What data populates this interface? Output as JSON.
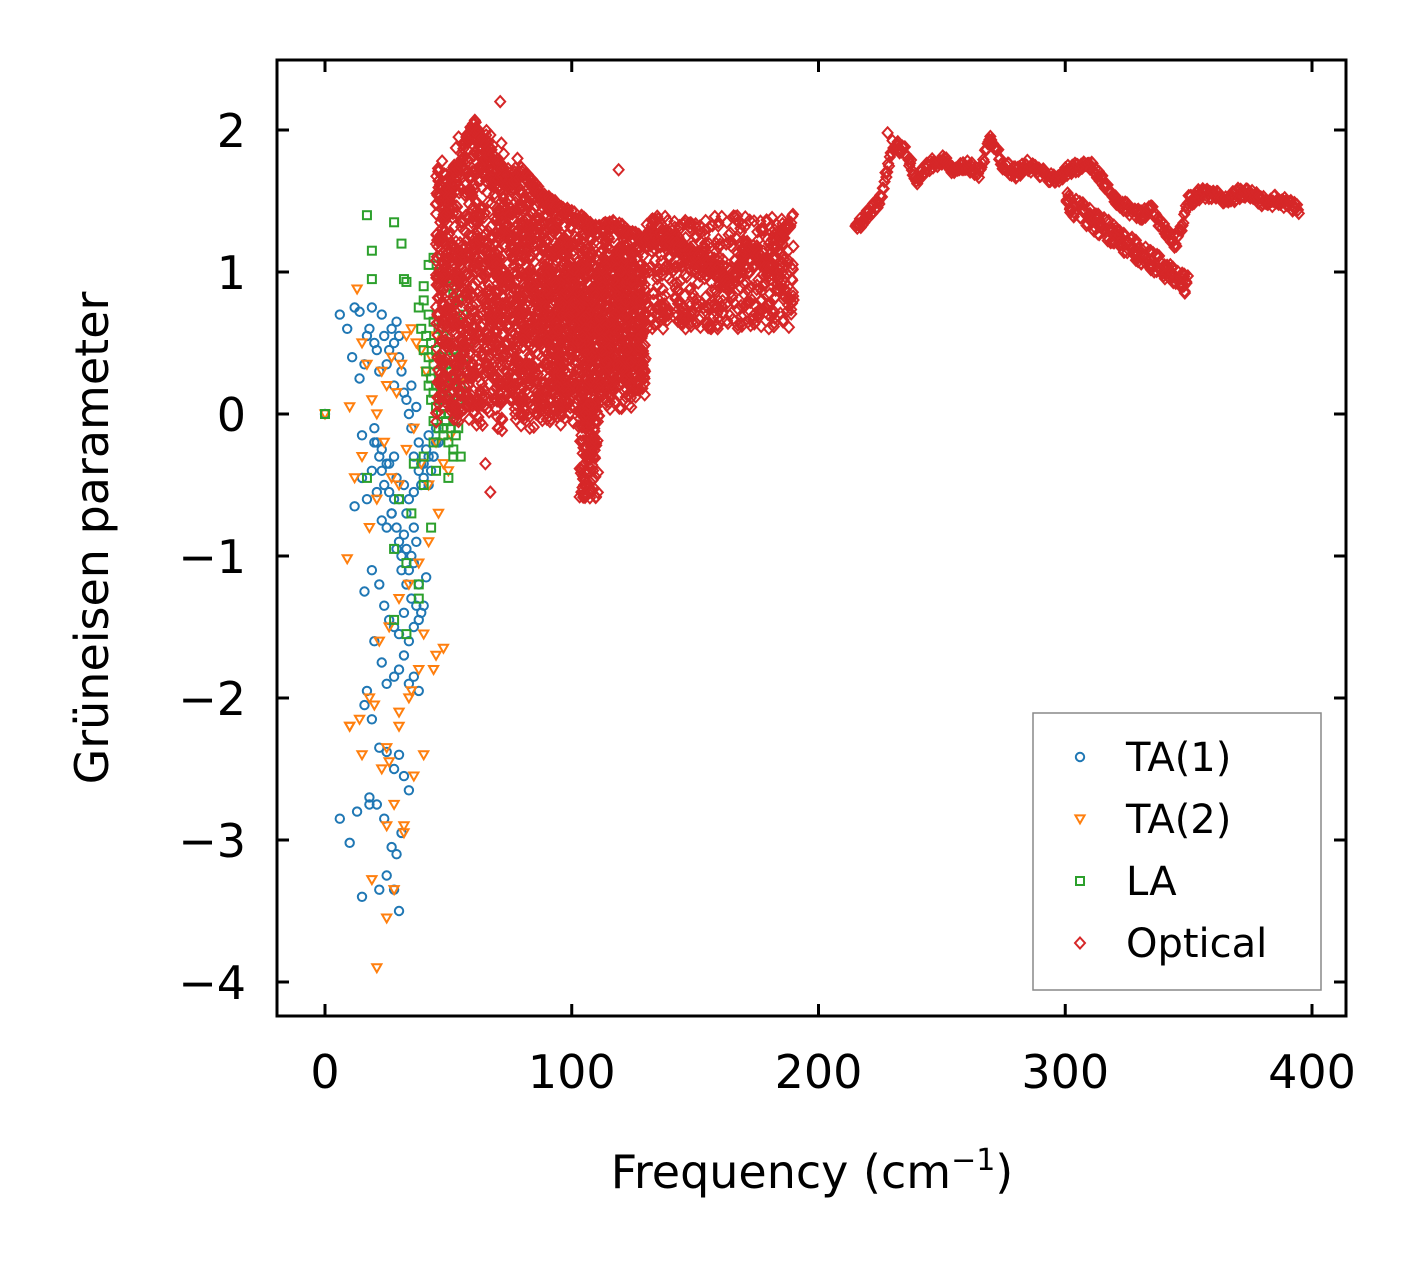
{
  "chart_data": {
    "type": "scatter",
    "xlabel": "Frequency (cm",
    "xlabel_sup": "−1",
    "xlabel_close": ")",
    "ylabel": "Grüneisen parameter",
    "xlim": [
      -20,
      415
    ],
    "ylim": [
      -4.25,
      2.5
    ],
    "xticks": [
      0,
      100,
      200,
      300,
      400
    ],
    "xtick_labels": [
      "0",
      "100",
      "200",
      "300",
      "400"
    ],
    "yticks": [
      2,
      1,
      0,
      -1,
      -2,
      -3,
      -4
    ],
    "ytick_labels": [
      "2",
      "1",
      "0",
      "−1",
      "−2",
      "−3",
      "−4"
    ],
    "grid": false,
    "legend_position": "bottom-right",
    "series": [
      {
        "name": "TA(1)",
        "marker": "circle",
        "color": "#1f77b4",
        "x": [
          0,
          6,
          9,
          11,
          12,
          14,
          14,
          16,
          17,
          18,
          19,
          20,
          21,
          22,
          23,
          24,
          25,
          26,
          27,
          28,
          28,
          29,
          30,
          30,
          31,
          32,
          33,
          34,
          35,
          35,
          36,
          37,
          38,
          39,
          40,
          41,
          42,
          43,
          44,
          45,
          46,
          20,
          21,
          22,
          23,
          24,
          25,
          26,
          27,
          28,
          29,
          30,
          31,
          32,
          33,
          34,
          35,
          36,
          37,
          38,
          12,
          15,
          17,
          19,
          21,
          23,
          25,
          27,
          29,
          31,
          33,
          35,
          37,
          39,
          41,
          16,
          19,
          22,
          24,
          26,
          28,
          30,
          32,
          34,
          36,
          38,
          40,
          17,
          20,
          23,
          25,
          28,
          30,
          32,
          34,
          36,
          38,
          16,
          19,
          22,
          25,
          28,
          30,
          32,
          34,
          15,
          18,
          21,
          24,
          27,
          29,
          31,
          6,
          10,
          13,
          18,
          22,
          25,
          28,
          30,
          15,
          20,
          23,
          26,
          28,
          29,
          32,
          34,
          36,
          38,
          40,
          42,
          44,
          46,
          48,
          50,
          52,
          30,
          33,
          36,
          39,
          42,
          45,
          48
        ],
        "y": [
          0.0,
          0.7,
          0.6,
          0.4,
          0.75,
          0.72,
          0.25,
          0.35,
          0.55,
          0.6,
          0.75,
          0.5,
          0.45,
          0.3,
          0.7,
          0.55,
          0.35,
          0.45,
          0.6,
          0.5,
          0.2,
          0.65,
          0.4,
          0.55,
          0.3,
          0.15,
          0.1,
          0.0,
          0.2,
          -0.1,
          -0.3,
          0.05,
          -0.2,
          -0.35,
          -0.45,
          -0.25,
          -0.15,
          -0.4,
          -0.3,
          -0.1,
          -0.2,
          -0.1,
          -0.2,
          -0.3,
          -0.4,
          -0.5,
          -0.35,
          -0.55,
          -0.7,
          -0.6,
          -0.8,
          -0.9,
          -1.0,
          -0.85,
          -0.95,
          -1.1,
          -1.0,
          -1.05,
          -0.9,
          -1.2,
          -0.65,
          -0.45,
          -0.6,
          -0.4,
          -0.55,
          -0.75,
          -0.8,
          -0.7,
          -0.95,
          -1.1,
          -1.2,
          -1.3,
          -1.35,
          -1.4,
          -1.15,
          -1.25,
          -1.1,
          -1.2,
          -1.35,
          -1.45,
          -1.5,
          -1.55,
          -1.4,
          -1.6,
          -1.5,
          -1.45,
          -1.35,
          -1.95,
          -1.6,
          -1.75,
          -1.9,
          -1.85,
          -1.8,
          -1.7,
          -1.9,
          -1.85,
          -1.95,
          -2.05,
          -2.15,
          -2.35,
          -2.38,
          -2.5,
          -2.4,
          -2.55,
          -2.65,
          -3.4,
          -2.7,
          -2.75,
          -2.85,
          -3.05,
          -3.1,
          -2.95,
          -2.85,
          -3.02,
          -2.8,
          -2.75,
          -3.35,
          -3.25,
          -3.35,
          -3.5,
          -0.15,
          -0.2,
          -0.25,
          -0.35,
          -0.3,
          -0.45,
          -0.5,
          -0.6,
          -0.55,
          -0.4,
          -0.35,
          -0.5,
          -0.3,
          -0.2,
          -0.1,
          0.0,
          0.1,
          -0.6,
          -0.7,
          -0.8,
          -0.5,
          -0.3,
          -0.2,
          -0.1
        ]
      },
      {
        "name": "TA(2)",
        "marker": "triangle-down",
        "color": "#ff7f0e",
        "x": [
          0,
          10,
          13,
          15,
          17,
          19,
          21,
          23,
          25,
          27,
          29,
          31,
          33,
          35,
          37,
          39,
          41,
          43,
          45,
          47,
          49,
          51,
          53,
          55,
          9,
          12,
          15,
          18,
          21,
          24,
          27,
          30,
          33,
          36,
          39,
          42,
          45,
          48,
          51,
          10,
          14,
          18,
          22,
          26,
          30,
          34,
          38,
          42,
          46,
          50,
          10,
          15,
          20,
          25,
          30,
          35,
          40,
          45,
          21,
          25,
          28,
          32,
          36,
          40,
          44,
          48,
          19,
          25,
          28,
          32,
          23,
          26,
          30,
          34,
          38
        ],
        "y": [
          0.0,
          0.05,
          0.88,
          0.5,
          0.35,
          0.1,
          0.0,
          0.3,
          0.2,
          0.4,
          0.15,
          0.35,
          0.55,
          0.6,
          0.5,
          0.45,
          0.3,
          0.4,
          0.55,
          0.35,
          0.2,
          0.45,
          0.3,
          0.25,
          -1.02,
          -0.45,
          -0.3,
          -0.8,
          -0.6,
          -0.2,
          -0.45,
          -0.5,
          -0.25,
          -0.1,
          -0.35,
          -0.5,
          -0.2,
          -0.35,
          -0.15,
          -2.2,
          -2.15,
          -2.0,
          -1.6,
          -1.5,
          -1.3,
          -1.2,
          -1.05,
          -0.9,
          -0.7,
          -0.4,
          -2.2,
          -2.4,
          -2.05,
          -2.35,
          -2.1,
          -1.95,
          -1.55,
          -1.7,
          -3.9,
          -3.55,
          -3.35,
          -2.9,
          -2.55,
          -2.4,
          -1.8,
          -1.65,
          -3.28,
          -2.9,
          -2.75,
          -2.95,
          -2.5,
          -2.45,
          -2.2,
          -2.0,
          -1.8
        ]
      },
      {
        "name": "LA",
        "marker": "square",
        "color": "#2ca02c",
        "x": [
          0,
          17,
          19,
          28,
          31,
          19,
          32,
          33,
          40,
          42,
          44,
          46,
          48,
          50,
          52,
          54,
          56,
          58,
          38,
          40,
          42,
          44,
          46,
          48,
          50,
          52,
          54,
          56,
          39,
          41,
          43,
          45,
          47,
          49,
          51,
          53,
          55,
          57,
          40,
          42,
          44,
          46,
          48,
          50,
          52,
          54,
          41,
          43,
          45,
          47,
          49,
          51,
          53,
          42,
          44,
          46,
          48,
          50,
          52,
          54,
          43,
          45,
          47,
          49,
          51,
          53,
          44,
          46,
          48,
          50,
          52,
          36,
          40,
          44,
          48,
          52,
          55,
          30,
          35,
          40,
          45,
          50,
          28,
          33,
          38,
          43,
          17,
          28,
          33,
          38
        ],
        "y": [
          0.0,
          1.4,
          1.15,
          1.35,
          1.2,
          0.95,
          0.95,
          0.93,
          0.9,
          1.05,
          1.1,
          1.0,
          0.95,
          0.9,
          0.85,
          0.8,
          0.7,
          0.5,
          0.75,
          0.8,
          0.7,
          0.65,
          0.6,
          0.55,
          0.5,
          0.45,
          0.4,
          0.35,
          0.6,
          0.55,
          0.5,
          0.45,
          0.4,
          0.35,
          0.3,
          0.25,
          0.2,
          0.15,
          0.45,
          0.4,
          0.35,
          0.3,
          0.25,
          0.2,
          0.15,
          0.1,
          0.3,
          0.25,
          0.2,
          0.15,
          0.1,
          0.05,
          0.0,
          0.2,
          0.15,
          0.1,
          0.05,
          0.0,
          -0.05,
          -0.1,
          0.1,
          0.05,
          0.0,
          -0.05,
          -0.1,
          -0.15,
          -0.05,
          -0.1,
          -0.15,
          -0.2,
          -0.3,
          -0.35,
          -0.3,
          -0.2,
          -0.1,
          -0.25,
          -0.3,
          -0.6,
          -0.7,
          -0.5,
          -0.4,
          -0.45,
          -0.95,
          -1.05,
          -1.2,
          -0.8,
          -0.45,
          -1.45,
          -1.55,
          -1.3
        ]
      },
      {
        "name": "Optical",
        "marker": "diamond",
        "color": "#d62728",
        "density_note": "dense cluster region 45–130 cm⁻¹ plus branch trace to 395 cm⁻¹",
        "trace_x": [
          45,
          50,
          55,
          60,
          65,
          70,
          75,
          80,
          85,
          90,
          95,
          100,
          105,
          110,
          115,
          120,
          125,
          130,
          135,
          140,
          145,
          150,
          155,
          160,
          165,
          170,
          175,
          180,
          185,
          190,
          215,
          220,
          225,
          230,
          235,
          240,
          245,
          250,
          255,
          260,
          265,
          270,
          275,
          280,
          285,
          290,
          295,
          300,
          305,
          310,
          315,
          320,
          325,
          330,
          335,
          340,
          345,
          350,
          355,
          360,
          365,
          370,
          375,
          380,
          385,
          390,
          395
        ],
        "trace_y": [
          1.1,
          1.5,
          1.8,
          2.05,
          1.9,
          1.75,
          1.65,
          1.7,
          1.6,
          1.5,
          1.45,
          1.4,
          1.35,
          1.3,
          1.35,
          1.3,
          1.25,
          1.2,
          1.25,
          1.2,
          1.15,
          1.1,
          1.05,
          1.0,
          0.85,
          1.2,
          1.15,
          1.0,
          1.25,
          1.4,
          1.3,
          1.4,
          1.5,
          1.9,
          1.85,
          1.65,
          1.75,
          1.8,
          1.7,
          1.75,
          1.7,
          1.95,
          1.75,
          1.7,
          1.75,
          1.7,
          1.65,
          1.7,
          1.75,
          1.75,
          1.65,
          1.5,
          1.45,
          1.4,
          1.45,
          1.3,
          1.2,
          1.5,
          1.55,
          1.55,
          1.5,
          1.55,
          1.55,
          1.5,
          1.5,
          1.48,
          1.44
        ],
        "outliers_x": [
          71,
          119,
          65,
          67,
          70,
          80,
          83,
          105,
          108,
          78,
          228,
          302,
          334,
          348
        ],
        "outliers_y": [
          2.2,
          1.72,
          -0.35,
          -0.55,
          -0.1,
          0.0,
          -0.1,
          -0.5,
          -0.55,
          1.8,
          1.98,
          1.45,
          1.15,
          0.9
        ]
      }
    ]
  }
}
